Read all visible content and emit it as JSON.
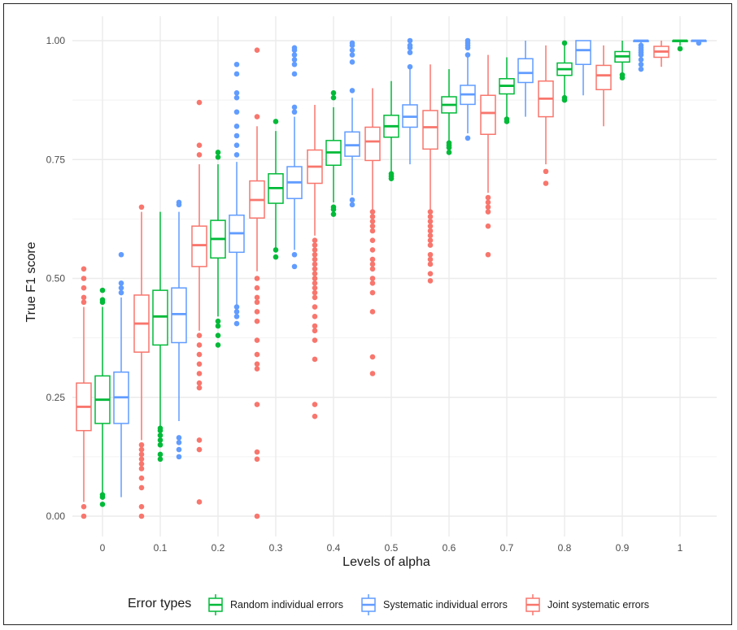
{
  "chart_data": {
    "type": "boxplot",
    "xlabel": "Levels of alpha",
    "ylabel": "True F1 score",
    "ylim": [
      0,
      1
    ],
    "yticks": [
      0.0,
      0.25,
      0.5,
      0.75,
      1.0
    ],
    "ytick_labels": [
      "0.00",
      "0.25",
      "0.50",
      "0.75",
      "1.00"
    ],
    "categories": [
      "0",
      "0.1",
      "0.2",
      "0.3",
      "0.4",
      "0.5",
      "0.6",
      "0.7",
      "0.8",
      "0.9",
      "1"
    ],
    "grid": true,
    "legend": {
      "title": "Error types",
      "placement": "bottom",
      "entries": [
        "Random individual errors",
        "Systematic individual errors",
        "Joint systematic errors"
      ]
    },
    "series": [
      {
        "name": "Joint systematic errors",
        "color": "#F8766D",
        "boxes": [
          {
            "q1": 0.18,
            "median": 0.23,
            "q3": 0.28,
            "wlo": 0.03,
            "whi": 0.44,
            "outliers": [
              0.0,
              0.02,
              0.45,
              0.46,
              0.48,
              0.5,
              0.52
            ]
          },
          {
            "q1": 0.345,
            "median": 0.405,
            "q3": 0.465,
            "wlo": 0.16,
            "whi": 0.64,
            "outliers": [
              0.0,
              0.02,
              0.06,
              0.08,
              0.1,
              0.11,
              0.12,
              0.13,
              0.14,
              0.15,
              0.65
            ]
          },
          {
            "q1": 0.525,
            "median": 0.57,
            "q3": 0.61,
            "wlo": 0.39,
            "whi": 0.74,
            "outliers": [
              0.03,
              0.14,
              0.16,
              0.27,
              0.28,
              0.3,
              0.32,
              0.34,
              0.36,
              0.38,
              0.76,
              0.78,
              0.87
            ]
          },
          {
            "q1": 0.627,
            "median": 0.665,
            "q3": 0.705,
            "wlo": 0.515,
            "whi": 0.82,
            "outliers": [
              0.0,
              0.12,
              0.135,
              0.235,
              0.31,
              0.32,
              0.34,
              0.37,
              0.41,
              0.43,
              0.45,
              0.46,
              0.48,
              0.5,
              0.84,
              0.98
            ]
          },
          {
            "q1": 0.7,
            "median": 0.735,
            "q3": 0.77,
            "wlo": 0.59,
            "whi": 0.865,
            "outliers": [
              0.21,
              0.235,
              0.33,
              0.37,
              0.39,
              0.4,
              0.42,
              0.44,
              0.46,
              0.47,
              0.48,
              0.49,
              0.5,
              0.51,
              0.52,
              0.53,
              0.54,
              0.55,
              0.56,
              0.57,
              0.58
            ]
          },
          {
            "q1": 0.748,
            "median": 0.788,
            "q3": 0.818,
            "wlo": 0.645,
            "whi": 0.9,
            "outliers": [
              0.3,
              0.335,
              0.43,
              0.47,
              0.49,
              0.5,
              0.52,
              0.53,
              0.54,
              0.56,
              0.58,
              0.6,
              0.61,
              0.62,
              0.63,
              0.64
            ]
          },
          {
            "q1": 0.772,
            "median": 0.818,
            "q3": 0.853,
            "wlo": 0.645,
            "whi": 0.95,
            "outliers": [
              0.495,
              0.51,
              0.53,
              0.54,
              0.55,
              0.57,
              0.58,
              0.59,
              0.6,
              0.61,
              0.62,
              0.63,
              0.64
            ]
          },
          {
            "q1": 0.803,
            "median": 0.848,
            "q3": 0.885,
            "wlo": 0.68,
            "whi": 0.97,
            "outliers": [
              0.55,
              0.61,
              0.64,
              0.65,
              0.66,
              0.67
            ]
          },
          {
            "q1": 0.84,
            "median": 0.878,
            "q3": 0.915,
            "wlo": 0.74,
            "whi": 0.99,
            "outliers": [
              0.7,
              0.725
            ]
          },
          {
            "q1": 0.897,
            "median": 0.927,
            "q3": 0.948,
            "wlo": 0.82,
            "whi": 0.99,
            "outliers": []
          },
          {
            "q1": 0.965,
            "median": 0.977,
            "q3": 0.988,
            "wlo": 0.945,
            "whi": 1.0,
            "outliers": []
          }
        ]
      },
      {
        "name": "Random individual errors",
        "color": "#00BA38",
        "boxes": [
          {
            "q1": 0.195,
            "median": 0.245,
            "q3": 0.295,
            "wlo": 0.05,
            "whi": 0.44,
            "outliers": [
              0.025,
              0.04,
              0.045,
              0.45,
              0.455,
              0.475
            ]
          },
          {
            "q1": 0.36,
            "median": 0.42,
            "q3": 0.475,
            "wlo": 0.19,
            "whi": 0.64,
            "outliers": [
              0.12,
              0.13,
              0.15,
              0.16,
              0.17,
              0.18,
              0.185
            ]
          },
          {
            "q1": 0.543,
            "median": 0.583,
            "q3": 0.622,
            "wlo": 0.42,
            "whi": 0.74,
            "outliers": [
              0.36,
              0.38,
              0.4,
              0.41,
              0.755,
              0.765
            ]
          },
          {
            "q1": 0.658,
            "median": 0.69,
            "q3": 0.72,
            "wlo": 0.565,
            "whi": 0.81,
            "outliers": [
              0.545,
              0.56,
              0.83
            ]
          },
          {
            "q1": 0.738,
            "median": 0.765,
            "q3": 0.79,
            "wlo": 0.66,
            "whi": 0.86,
            "outliers": [
              0.635,
              0.645,
              0.65,
              0.88,
              0.89
            ]
          },
          {
            "q1": 0.797,
            "median": 0.82,
            "q3": 0.843,
            "wlo": 0.725,
            "whi": 0.915,
            "outliers": [
              0.71,
              0.715,
              0.72
            ]
          },
          {
            "q1": 0.848,
            "median": 0.865,
            "q3": 0.882,
            "wlo": 0.79,
            "whi": 0.94,
            "outliers": [
              0.765,
              0.775,
              0.78,
              0.785
            ]
          },
          {
            "q1": 0.888,
            "median": 0.905,
            "q3": 0.92,
            "wlo": 0.84,
            "whi": 0.965,
            "outliers": [
              0.83,
              0.835
            ]
          },
          {
            "q1": 0.927,
            "median": 0.94,
            "q3": 0.953,
            "wlo": 0.885,
            "whi": 0.99,
            "outliers": [
              0.875,
              0.88,
              0.995
            ]
          },
          {
            "q1": 0.955,
            "median": 0.967,
            "q3": 0.977,
            "wlo": 0.93,
            "whi": 1.0,
            "outliers": [
              0.922,
              0.928
            ]
          },
          {
            "q1": 0.998,
            "median": 1.0,
            "q3": 1.0,
            "wlo": 0.99,
            "whi": 1.0,
            "outliers": [
              0.983
            ]
          }
        ]
      },
      {
        "name": "Systematic individual errors",
        "color": "#619CFF",
        "boxes": [
          {
            "q1": 0.195,
            "median": 0.25,
            "q3": 0.303,
            "wlo": 0.04,
            "whi": 0.46,
            "outliers": [
              0.47,
              0.48,
              0.49,
              0.55
            ]
          },
          {
            "q1": 0.365,
            "median": 0.425,
            "q3": 0.48,
            "wlo": 0.2,
            "whi": 0.64,
            "outliers": [
              0.125,
              0.14,
              0.155,
              0.165,
              0.655,
              0.66
            ]
          },
          {
            "q1": 0.555,
            "median": 0.595,
            "q3": 0.633,
            "wlo": 0.44,
            "whi": 0.745,
            "outliers": [
              0.405,
              0.42,
              0.43,
              0.44,
              0.76,
              0.78,
              0.8,
              0.82,
              0.85,
              0.88,
              0.89,
              0.93,
              0.95
            ]
          },
          {
            "q1": 0.668,
            "median": 0.702,
            "q3": 0.735,
            "wlo": 0.56,
            "whi": 0.84,
            "outliers": [
              0.525,
              0.55,
              0.85,
              0.86,
              0.93,
              0.95,
              0.96,
              0.97,
              0.98,
              0.985
            ]
          },
          {
            "q1": 0.757,
            "median": 0.78,
            "q3": 0.808,
            "wlo": 0.675,
            "whi": 0.88,
            "outliers": [
              0.655,
              0.665,
              0.895,
              0.955,
              0.97,
              0.98,
              0.99,
              0.995
            ]
          },
          {
            "q1": 0.818,
            "median": 0.84,
            "q3": 0.865,
            "wlo": 0.74,
            "whi": 0.94,
            "outliers": [
              0.945,
              0.975,
              0.985,
              0.99,
              1.0
            ]
          },
          {
            "q1": 0.866,
            "median": 0.887,
            "q3": 0.906,
            "wlo": 0.805,
            "whi": 0.965,
            "outliers": [
              0.795,
              0.97,
              0.985,
              0.99,
              0.995,
              1.0
            ]
          },
          {
            "q1": 0.912,
            "median": 0.932,
            "q3": 0.962,
            "wlo": 0.84,
            "whi": 1.0,
            "outliers": []
          },
          {
            "q1": 0.95,
            "median": 0.98,
            "q3": 1.0,
            "wlo": 0.885,
            "whi": 1.0,
            "outliers": []
          },
          {
            "q1": 0.998,
            "median": 1.0,
            "q3": 1.0,
            "wlo": 0.995,
            "whi": 1.0,
            "outliers": [
              0.94,
              0.95,
              0.96,
              0.97,
              0.975,
              0.98,
              0.985,
              0.99
            ]
          },
          {
            "q1": 0.999,
            "median": 1.0,
            "q3": 1.0,
            "wlo": 0.998,
            "whi": 1.0,
            "outliers": [
              0.995
            ]
          }
        ]
      }
    ]
  }
}
